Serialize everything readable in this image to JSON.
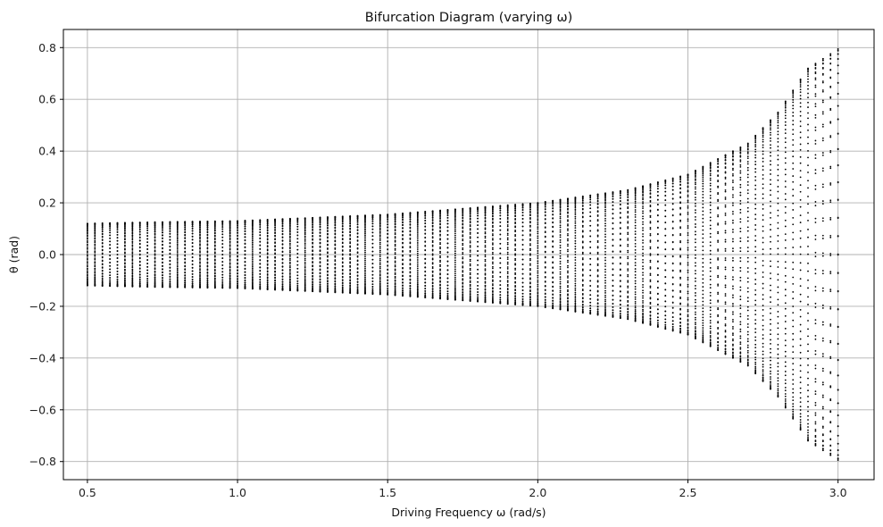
{
  "chart_data": {
    "type": "scatter",
    "title": "Bifurcation Diagram (varying ω)",
    "xlabel": "Driving Frequency ω (rad/s)",
    "ylabel": "θ (rad)",
    "xlim": [
      0.42,
      3.12
    ],
    "ylim": [
      -0.87,
      0.87
    ],
    "x_ticks": [
      0.5,
      1.0,
      1.5,
      2.0,
      2.5,
      3.0
    ],
    "x_tick_labels": [
      "0.5",
      "1.0",
      "1.5",
      "2.0",
      "2.5",
      "3.0"
    ],
    "y_ticks": [
      -0.8,
      -0.6,
      -0.4,
      -0.2,
      0.0,
      0.2,
      0.4,
      0.6,
      0.8
    ],
    "y_tick_labels": [
      "−0.8",
      "−0.6",
      "−0.4",
      "−0.2",
      "0.0",
      "0.2",
      "0.4",
      "0.6",
      "0.8"
    ],
    "grid": true,
    "marker_color": "#000000",
    "series": [
      {
        "x_range": [
          0.5,
          3.0
        ],
        "x_step": 0.025,
        "amplitude_envelope": {
          "omega": [
            0.5,
            0.7,
            1.0,
            1.5,
            2.0,
            2.3,
            2.5,
            2.7,
            2.8,
            2.9,
            3.0
          ],
          "theta_max": [
            0.12,
            0.125,
            0.13,
            0.155,
            0.2,
            0.25,
            0.31,
            0.43,
            0.55,
            0.72,
            0.795
          ]
        }
      }
    ]
  }
}
